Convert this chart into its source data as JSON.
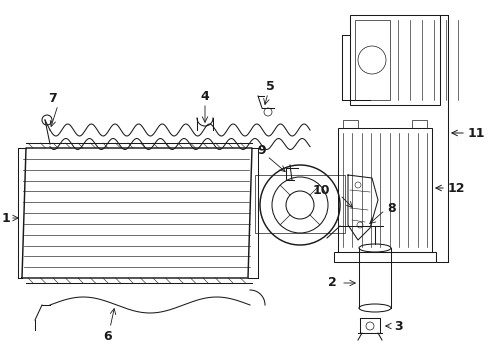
{
  "bg_color": "#ffffff",
  "line_color": "#1a1a1a",
  "label_color": "#1a1a1a",
  "lw": 0.75,
  "figsize": [
    4.9,
    3.6
  ],
  "dpi": 100
}
